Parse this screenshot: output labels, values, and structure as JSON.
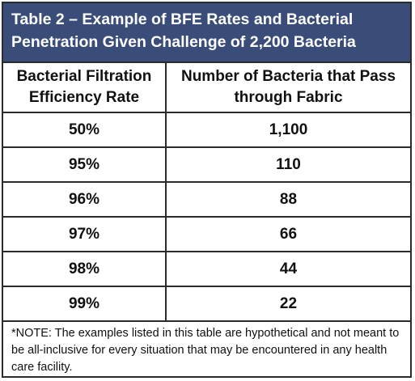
{
  "title": {
    "line1": "Table 2 – Example of BFE Rates and Bacterial",
    "line2": "Penetration Given Challenge of 2,200 Bacteria"
  },
  "table": {
    "headers": {
      "col1_line1": "Bacterial Filtration",
      "col1_line2": "Efficiency Rate",
      "col2_line1": "Number of Bacteria that Pass",
      "col2_line2": "through Fabric"
    },
    "rows": [
      {
        "rate": "50%",
        "bacteria": "1,100"
      },
      {
        "rate": "95%",
        "bacteria": "110"
      },
      {
        "rate": "96%",
        "bacteria": "88"
      },
      {
        "rate": "97%",
        "bacteria": "66"
      },
      {
        "rate": "98%",
        "bacteria": "44"
      },
      {
        "rate": "99%",
        "bacteria": "22"
      }
    ]
  },
  "note": "*NOTE: The examples listed in this table are hypothetical and not meant to be all-inclusive for every situation that may be encountered in any health care facility.",
  "colors": {
    "title_background": "#3a4c78",
    "title_text": "#ffffff",
    "border": "#2b2b2b"
  }
}
